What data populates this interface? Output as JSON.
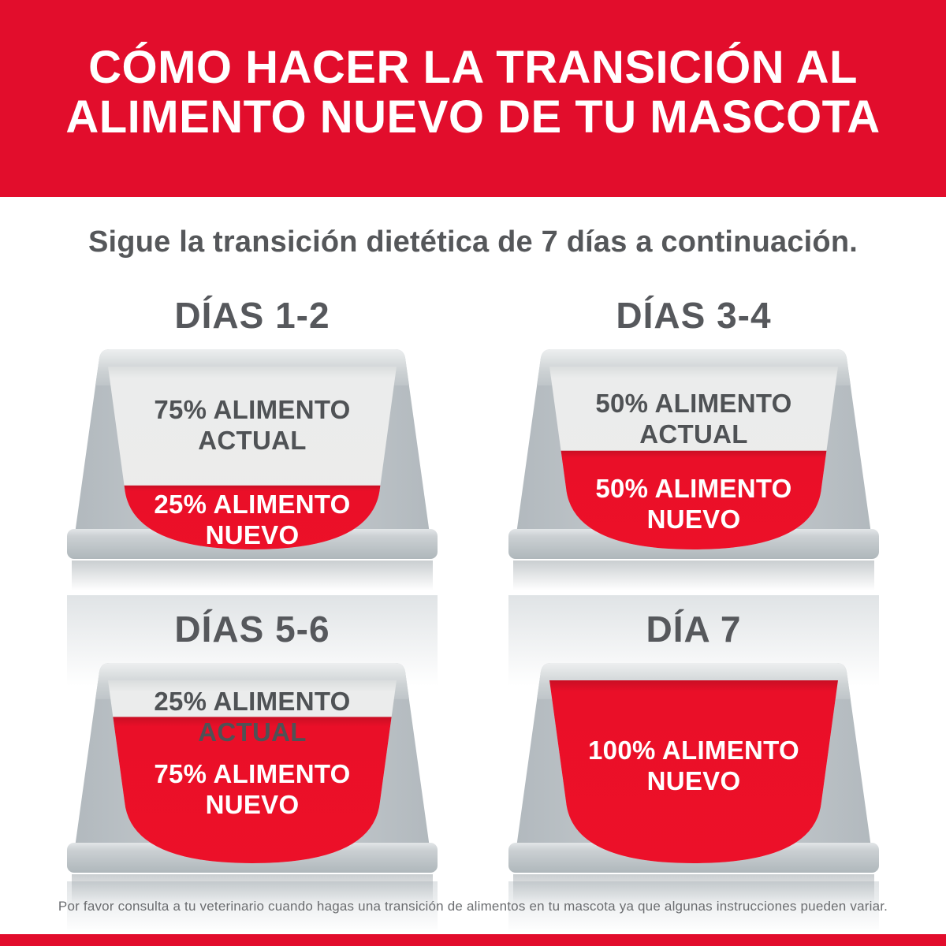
{
  "colors": {
    "banner_red": "#E20D2C",
    "bowl_red": "#ED0F28",
    "bowl_gray": "#C2C8CC",
    "current_food_gray": "#ECECEB",
    "heading_gray": "#56585C",
    "footer_gray": "#6B6D70"
  },
  "header": {
    "title": "CÓMO HACER LA TRANSICIÓN AL\nALIMENTO NUEVO DE TU MASCOTA"
  },
  "intro": "Sigue la transición dietética de 7 días a continuación.",
  "bowls": [
    {
      "day_label": "DÍAS 1-2",
      "current_food_label": "75% ALIMENTO\nACTUAL",
      "new_food_label": "25% ALIMENTO\nNUEVO",
      "current_food_pct": 75,
      "new_food_pct": 25,
      "new_fill_ratio": 0.35
    },
    {
      "day_label": "DÍAS 3-4",
      "current_food_label": "50% ALIMENTO\nACTUAL",
      "new_food_label": "50% ALIMENTO\nNUEVO",
      "current_food_pct": 50,
      "new_food_pct": 50,
      "new_fill_ratio": 0.54
    },
    {
      "day_label": "DÍAS 5-6",
      "current_food_label": "25% ALIMENTO ACTUAL",
      "new_food_label": "75% ALIMENTO\nNUEVO",
      "current_food_pct": 25,
      "new_food_pct": 75,
      "new_fill_ratio": 0.8
    },
    {
      "day_label": "DÍA 7",
      "current_food_label": "",
      "new_food_label": "100% ALIMENTO\nNUEVO",
      "current_food_pct": 0,
      "new_food_pct": 100,
      "new_fill_ratio": 1.0
    }
  ],
  "footer": "Por favor consulta a tu veterinario cuando hagas una transición de alimentos en tu mascota ya que algunas instrucciones pueden variar."
}
